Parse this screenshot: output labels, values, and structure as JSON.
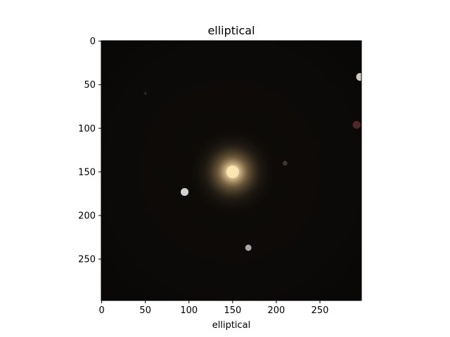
{
  "figure": {
    "title": "elliptical",
    "xlabel": "elliptical"
  },
  "image": {
    "subject": "elliptical galaxy",
    "width": 298,
    "height": 298,
    "background_color": "#0c0a08",
    "galaxy": {
      "center": [
        150,
        150
      ],
      "core_color": "#fbe6b4",
      "halo_color": "#9c7e4e"
    },
    "stars": [
      {
        "x": 95,
        "y": 173,
        "color": "#e8e8ec",
        "size": 5
      },
      {
        "x": 168,
        "y": 237,
        "color": "#b8b6bc",
        "size": 4
      },
      {
        "x": 296,
        "y": 41,
        "color": "#e4e2d0",
        "size": 5
      },
      {
        "x": 292,
        "y": 96,
        "color": "#5a2a2a",
        "size": 5
      },
      {
        "x": 210,
        "y": 140,
        "color": "#4a3a2a",
        "size": 3
      },
      {
        "x": 50,
        "y": 60,
        "color": "#2a2622",
        "size": 2
      }
    ]
  },
  "chart_data": {
    "type": "image",
    "title": "elliptical",
    "xlabel": "elliptical",
    "ylabel": "",
    "x_ticks": [
      0,
      50,
      100,
      150,
      200,
      250
    ],
    "y_ticks": [
      0,
      50,
      100,
      150,
      200,
      250
    ],
    "xlim": [
      -0.5,
      297.5
    ],
    "ylim": [
      297.5,
      -0.5
    ],
    "grid": false
  }
}
